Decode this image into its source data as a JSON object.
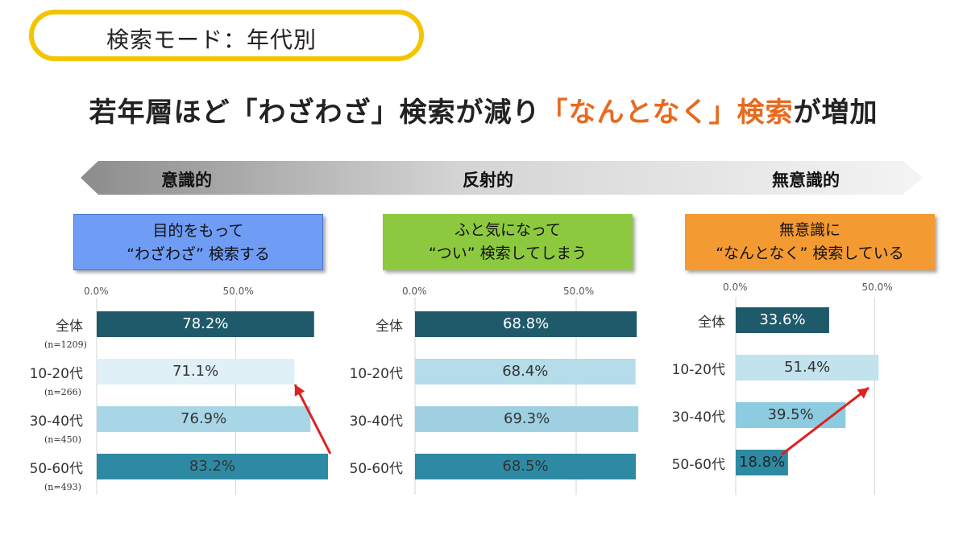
{
  "mode_label": "検索モード：年代別",
  "headline": {
    "part1": "若年層ほど「わざわざ」検索が減り",
    "accent": "「なんとなく」検索",
    "part2": "が増加"
  },
  "spectrum": {
    "left": "意識的",
    "center": "反射的",
    "right": "無意識的"
  },
  "colors": {
    "total": "#1f5a6a",
    "age_10_20": "#dff0f6",
    "age_30_40": "#a9d6e6",
    "age_50_60": "#2e8aa3",
    "arrow": "#e0201e",
    "pill_border": "#f5c400",
    "accent_text": "#e86a1f"
  },
  "chart_data": [
    {
      "type": "bar",
      "orientation": "horizontal",
      "title": "目的をもって“わざわざ”検索する",
      "title_lines": [
        "目的をもって",
        "“わざわざ” 検索する"
      ],
      "box_color": "#6f9cf5",
      "categories": [
        "全体",
        "10-20代",
        "30-40代",
        "50-60代"
      ],
      "sample_sizes": [
        "(n=1209)",
        "(n=266)",
        "(n=450)",
        "(n=493)"
      ],
      "values": [
        78.2,
        71.1,
        76.9,
        83.2
      ],
      "value_labels": [
        "78.2%",
        "71.1%",
        "76.9%",
        "83.2%"
      ],
      "bar_colors": [
        "#1f5a6a",
        "#dff0f6",
        "#a9d6e6",
        "#2e8aa3"
      ],
      "label_colors": [
        "#ffffff",
        "#333333",
        "#333333",
        "#333333"
      ],
      "ticks": [
        "0.0%",
        "50.0%"
      ],
      "xlim": [
        0,
        83.2
      ],
      "trend_arrow": "from 50-60代 up to 10-20代"
    },
    {
      "type": "bar",
      "orientation": "horizontal",
      "title": "ふと気になって“つい”検索してしまう",
      "title_lines": [
        "ふと気になって",
        "“つい” 検索してしまう"
      ],
      "box_color": "#8dc93f",
      "categories": [
        "全体",
        "10-20代",
        "30-40代",
        "50-60代"
      ],
      "sample_sizes": [
        "",
        "",
        "",
        ""
      ],
      "values": [
        68.8,
        68.4,
        69.3,
        68.5
      ],
      "value_labels": [
        "68.8%",
        "68.4%",
        "69.3%",
        "68.5%"
      ],
      "bar_colors": [
        "#1f5a6a",
        "#b5dce9",
        "#9fd0e2",
        "#2e8aa3"
      ],
      "label_colors": [
        "#ffffff",
        "#333333",
        "#333333",
        "#333333"
      ],
      "ticks": [
        "0.0%",
        "50.0%"
      ],
      "xlim": [
        0,
        69.3
      ],
      "trend_arrow": ""
    },
    {
      "type": "bar",
      "orientation": "horizontal",
      "title": "無意識に“なんとなく”検索している",
      "title_lines": [
        "無意識に",
        "“なんとなく” 検索している"
      ],
      "box_color": "#f49a33",
      "categories": [
        "全体",
        "10-20代",
        "30-40代",
        "50-60代"
      ],
      "sample_sizes": [
        "",
        "",
        "",
        ""
      ],
      "values": [
        33.6,
        51.4,
        39.5,
        18.8
      ],
      "value_labels": [
        "33.6%",
        "51.4%",
        "39.5%",
        "18.8%"
      ],
      "bar_colors": [
        "#1f5a6a",
        "#c2e2ee",
        "#8ccbe0",
        "#2e8aa3"
      ],
      "label_colors": [
        "#ffffff",
        "#333333",
        "#333333",
        "#222222"
      ],
      "ticks": [
        "0.0%",
        "50.0%"
      ],
      "xlim": [
        0,
        51.4
      ],
      "trend_arrow": "from 50-60代 up to 10-20代"
    }
  ]
}
